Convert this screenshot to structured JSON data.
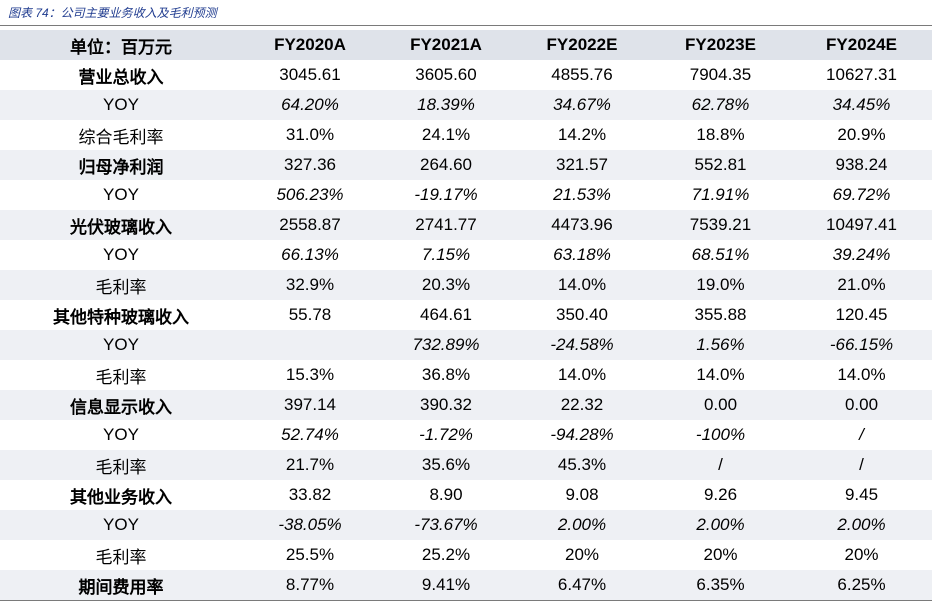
{
  "caption": "图表 74：公司主要业务收入及毛利预测",
  "header": [
    "单位：百万元",
    "FY2020A",
    "FY2021A",
    "FY2022E",
    "FY2023E",
    "FY2024E"
  ],
  "rows": [
    {
      "label": "营业总收入",
      "type": "bold",
      "values": [
        "3045.61",
        "3605.60",
        "4855.76",
        "7904.35",
        "10627.31"
      ]
    },
    {
      "label": "YOY",
      "type": "yoy",
      "values": [
        "64.20%",
        "18.39%",
        "34.67%",
        "62.78%",
        "34.45%"
      ]
    },
    {
      "label": "综合毛利率",
      "type": "plain",
      "values": [
        "31.0%",
        "24.1%",
        "14.2%",
        "18.8%",
        "20.9%"
      ]
    },
    {
      "label": "归母净利润",
      "type": "bold",
      "values": [
        "327.36",
        "264.60",
        "321.57",
        "552.81",
        "938.24"
      ]
    },
    {
      "label": "YOY",
      "type": "yoy",
      "values": [
        "506.23%",
        "-19.17%",
        "21.53%",
        "71.91%",
        "69.72%"
      ]
    },
    {
      "label": "光伏玻璃收入",
      "type": "bold",
      "values": [
        "2558.87",
        "2741.77",
        "4473.96",
        "7539.21",
        "10497.41"
      ]
    },
    {
      "label": "YOY",
      "type": "yoy",
      "values": [
        "66.13%",
        "7.15%",
        "63.18%",
        "68.51%",
        "39.24%"
      ]
    },
    {
      "label": "毛利率",
      "type": "plain",
      "values": [
        "32.9%",
        "20.3%",
        "14.0%",
        "19.0%",
        "21.0%"
      ]
    },
    {
      "label": "其他特种玻璃收入",
      "type": "bold",
      "values": [
        "55.78",
        "464.61",
        "350.40",
        "355.88",
        "120.45"
      ]
    },
    {
      "label": "YOY",
      "type": "yoy",
      "values": [
        "",
        "732.89%",
        "-24.58%",
        "1.56%",
        "-66.15%"
      ]
    },
    {
      "label": "毛利率",
      "type": "plain",
      "values": [
        "15.3%",
        "36.8%",
        "14.0%",
        "14.0%",
        "14.0%"
      ]
    },
    {
      "label": "信息显示收入",
      "type": "bold",
      "values": [
        "397.14",
        "390.32",
        "22.32",
        "0.00",
        "0.00"
      ]
    },
    {
      "label": "YOY",
      "type": "yoy",
      "values": [
        "52.74%",
        "-1.72%",
        "-94.28%",
        "-100%",
        "/"
      ]
    },
    {
      "label": "毛利率",
      "type": "plain",
      "values": [
        "21.7%",
        "35.6%",
        "45.3%",
        "/",
        "/"
      ]
    },
    {
      "label": "其他业务收入",
      "type": "bold",
      "values": [
        "33.82",
        "8.90",
        "9.08",
        "9.26",
        "9.45"
      ]
    },
    {
      "label": "YOY",
      "type": "yoy",
      "values": [
        "-38.05%",
        "-73.67%",
        "2.00%",
        "2.00%",
        "2.00%"
      ]
    },
    {
      "label": "毛利率",
      "type": "plain",
      "values": [
        "25.5%",
        "25.2%",
        "20%",
        "20%",
        "20%"
      ]
    },
    {
      "label": "期间费用率",
      "type": "bold",
      "values": [
        "8.77%",
        "9.41%",
        "6.47%",
        "6.35%",
        "6.25%"
      ]
    }
  ]
}
